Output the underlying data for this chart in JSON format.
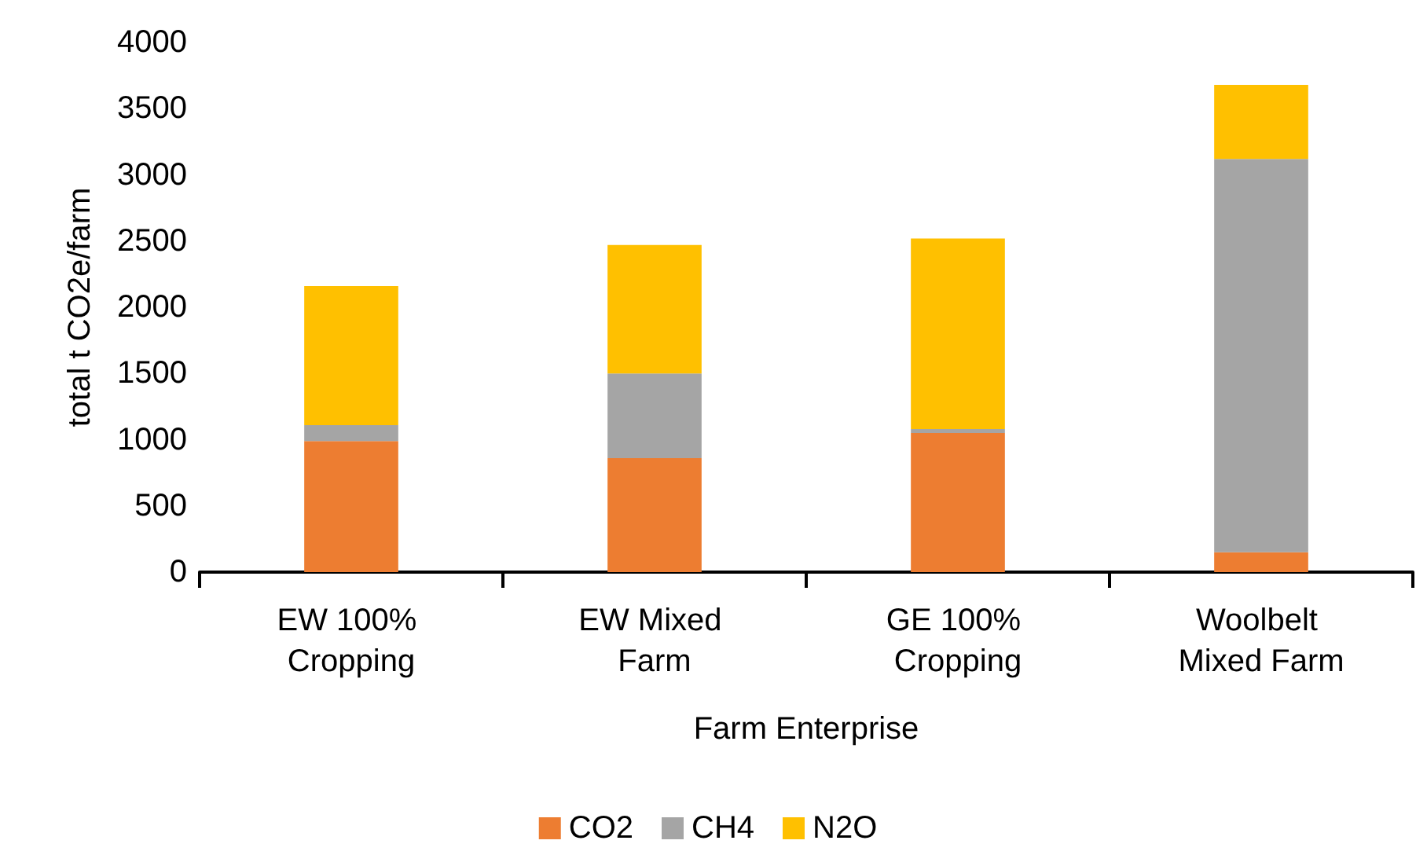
{
  "chart_data": {
    "type": "bar",
    "stacked": true,
    "xlabel": "Farm Enterprise",
    "ylabel": "total t CO2e/farm",
    "categories": [
      "EW 100% Cropping",
      "EW Mixed Farm",
      "GE 100% Cropping",
      "Woolbelt Mixed Farm"
    ],
    "series": [
      {
        "name": "CO2",
        "color": "#ed7d31",
        "values": [
          990,
          860,
          1050,
          150
        ]
      },
      {
        "name": "CH4",
        "color": "#a5a5a5",
        "values": [
          120,
          640,
          30,
          2970
        ]
      },
      {
        "name": "N2O",
        "color": "#ffc000",
        "values": [
          1050,
          970,
          1440,
          560
        ]
      }
    ],
    "ylim": [
      0,
      4000
    ],
    "yticks": [
      0,
      500,
      1000,
      1500,
      2000,
      2500,
      3000,
      3500,
      4000
    ],
    "grid": false,
    "legend": "bottom"
  }
}
